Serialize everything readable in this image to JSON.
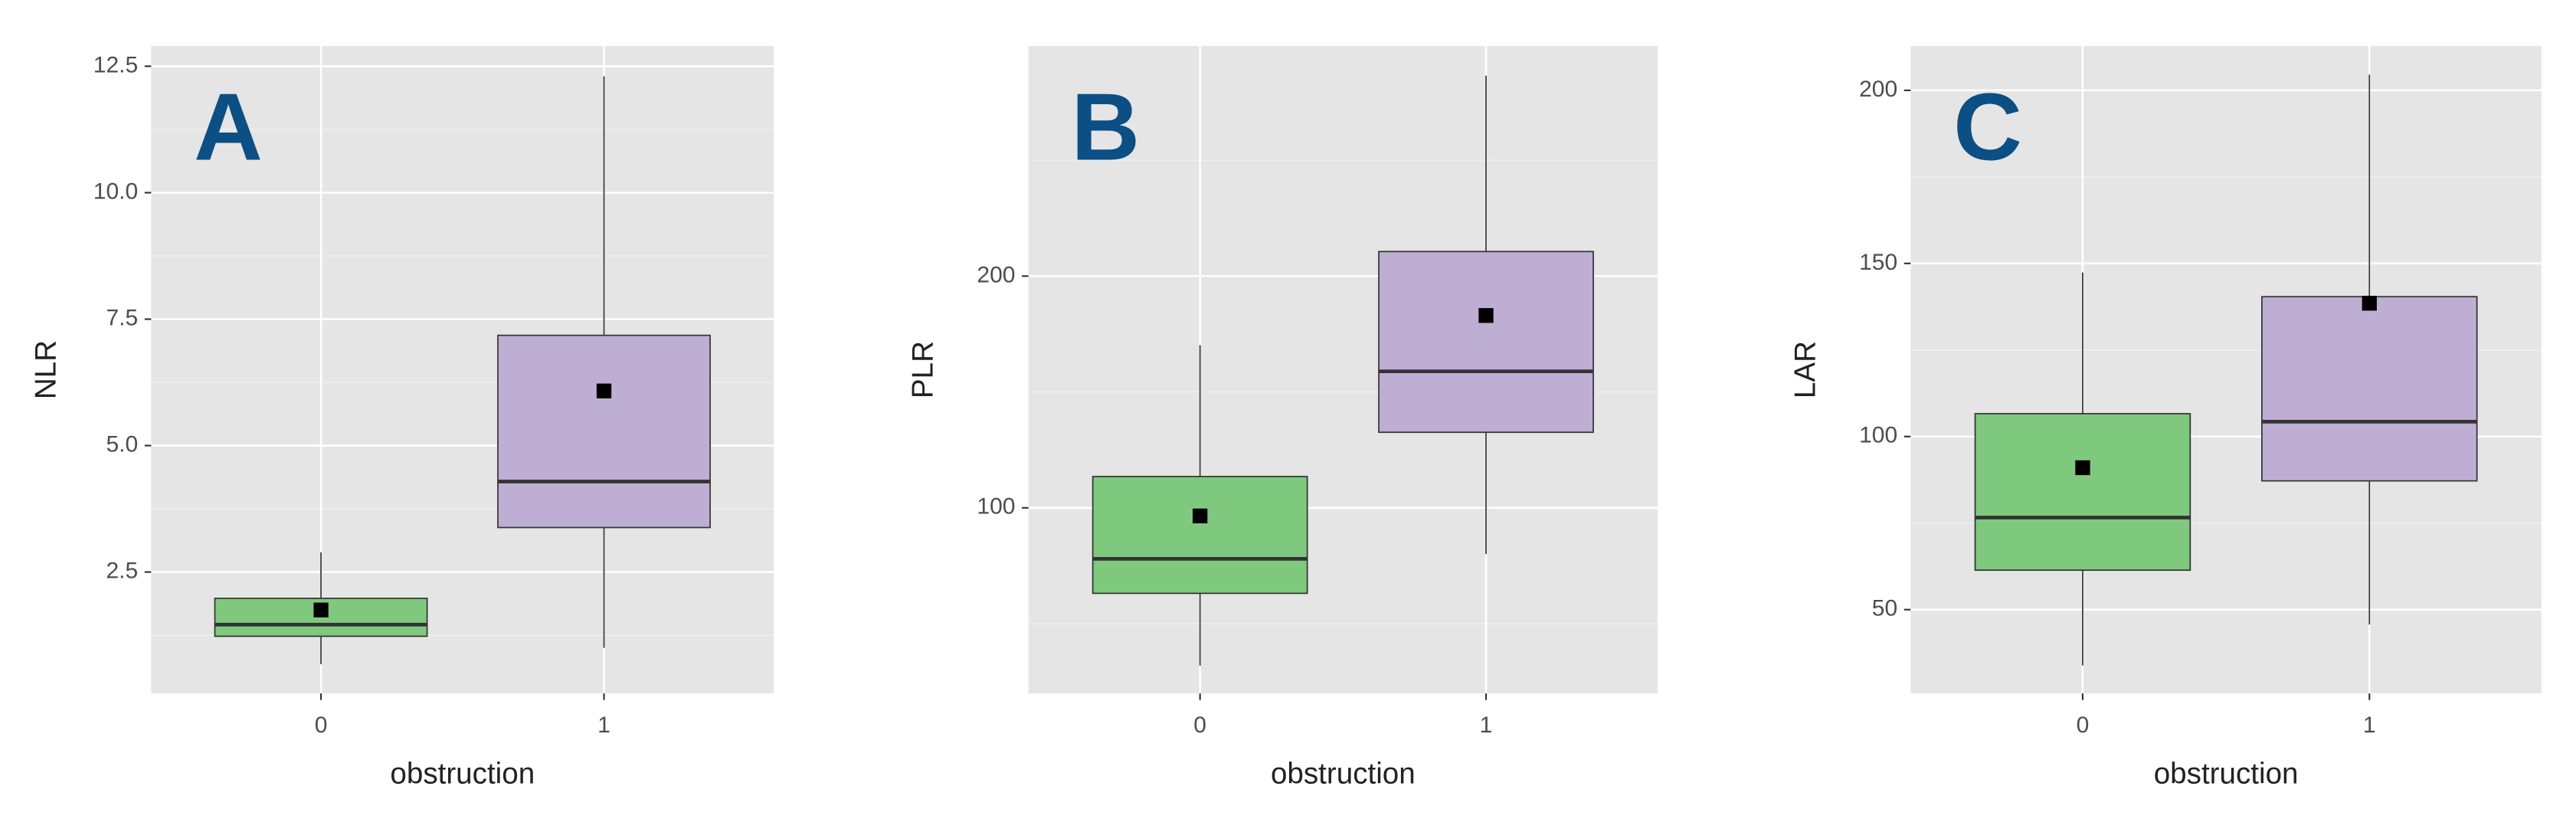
{
  "chart_data": [
    {
      "type": "box",
      "title": "A",
      "x_label": "obstruction",
      "y_label": "NLR",
      "categories": [
        "0",
        "1"
      ],
      "colors": [
        "#7fc97f",
        "#beaed4"
      ],
      "boxes": [
        {
          "min": 0.68,
          "q1": 1.23,
          "median": 1.46,
          "q3": 1.98,
          "max": 2.89,
          "mean": 1.75
        },
        {
          "min": 1.0,
          "q1": 3.38,
          "median": 4.29,
          "q3": 7.18,
          "max": 12.3,
          "mean": 6.08
        }
      ],
      "ylim": [
        0.1,
        12.9
      ],
      "yticks": [
        2.5,
        {
          "value": 5,
          "label": "5.0"
        },
        7.5,
        {
          "value": 10,
          "label": "10.0"
        },
        12.5
      ],
      "y_minor_grid": [
        1.25,
        3.75,
        6.25,
        8.75,
        11.25
      ],
      "grid": true
    },
    {
      "type": "box",
      "title": "B",
      "x_label": "obstruction",
      "y_label": "PLR",
      "categories": [
        "0",
        "1"
      ],
      "colors": [
        "#7fc97f",
        "#beaed4"
      ],
      "boxes": [
        {
          "min": 31.9,
          "q1": 63.1,
          "median": 78,
          "q3": 113.5,
          "max": 170.2,
          "mean": 96.5
        },
        {
          "min": 80.1,
          "q1": 132.6,
          "median": 158.9,
          "q3": 210.6,
          "max": 286.5,
          "mean": 183
        }
      ],
      "ylim": [
        19.9,
        299.3
      ],
      "yticks": [
        100,
        200
      ],
      "y_minor_grid": [
        50,
        150,
        250
      ],
      "grid": true
    },
    {
      "type": "box",
      "title": "C",
      "x_label": "obstruction",
      "y_label": "LAR",
      "categories": [
        "0",
        "1"
      ],
      "colors": [
        "#7fc97f",
        "#beaed4"
      ],
      "boxes": [
        {
          "min": 33.9,
          "q1": 61.4,
          "median": 76.6,
          "q3": 106.6,
          "max": 147.4,
          "mean": 91
        },
        {
          "min": 45.7,
          "q1": 87.2,
          "median": 104.3,
          "q3": 140.4,
          "max": 204.5,
          "mean": 138.5
        }
      ],
      "ylim": [
        25.8,
        212.8
      ],
      "yticks": [
        50,
        100,
        150,
        200
      ],
      "y_minor_grid": [
        75,
        125,
        175
      ],
      "grid": true
    }
  ]
}
